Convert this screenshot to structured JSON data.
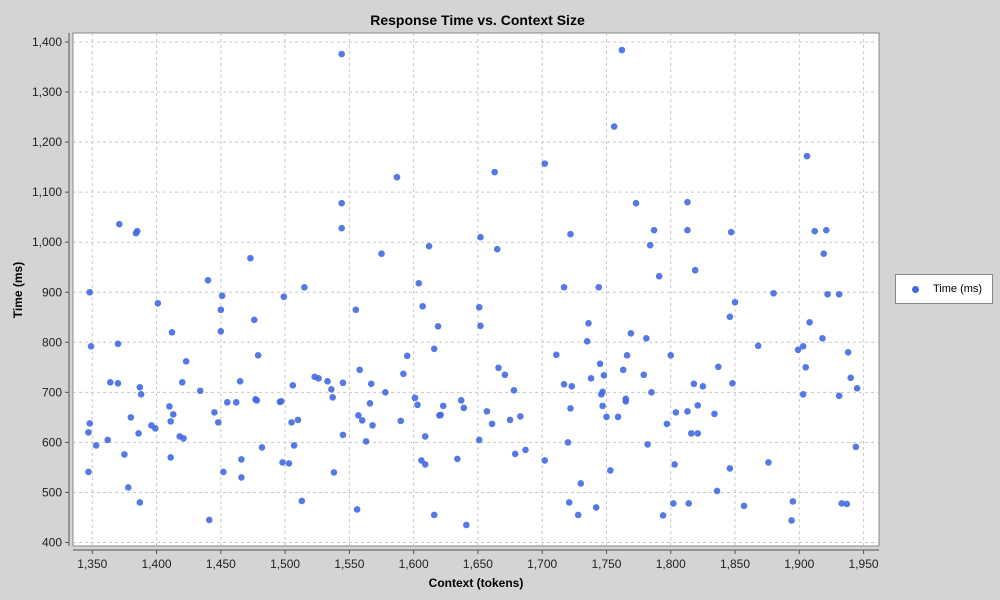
{
  "chart_data": {
    "type": "scatter",
    "title": "Response Time vs. Context Size",
    "xlabel": "Context (tokens)",
    "ylabel": "Time (ms)",
    "xlim": [
      1335,
      1962
    ],
    "ylim": [
      393,
      1418
    ],
    "x_ticks": [
      1350,
      1400,
      1450,
      1500,
      1550,
      1600,
      1650,
      1700,
      1750,
      1800,
      1850,
      1900,
      1950
    ],
    "x_tick_labels": [
      "1,350",
      "1,400",
      "1,450",
      "1,500",
      "1,550",
      "1,600",
      "1,650",
      "1,700",
      "1,750",
      "1,800",
      "1,850",
      "1,900",
      "1,950"
    ],
    "y_ticks": [
      400,
      500,
      600,
      700,
      800,
      900,
      1000,
      1100,
      1200,
      1300,
      1400
    ],
    "y_tick_labels": [
      "400",
      "500",
      "600",
      "700",
      "800",
      "900",
      "1,000",
      "1,100",
      "1,200",
      "1,300",
      "1,400"
    ],
    "grid": true,
    "legend_position": "right",
    "series": [
      {
        "name": "Time (ms)",
        "color": "#4169e1",
        "points": [
          [
            1348,
            900
          ],
          [
            1349,
            792
          ],
          [
            1347,
            620
          ],
          [
            1348,
            638
          ],
          [
            1347,
            541
          ],
          [
            1353,
            594
          ],
          [
            1362,
            605
          ],
          [
            1364,
            720
          ],
          [
            1370,
            797
          ],
          [
            1370,
            718
          ],
          [
            1371,
            1036
          ],
          [
            1375,
            576
          ],
          [
            1378,
            510
          ],
          [
            1380,
            650
          ],
          [
            1384,
            1018
          ],
          [
            1385,
            1022
          ],
          [
            1386,
            618
          ],
          [
            1387,
            480
          ],
          [
            1387,
            710
          ],
          [
            1388,
            696
          ],
          [
            1396,
            634
          ],
          [
            1399,
            628
          ],
          [
            1401,
            878
          ],
          [
            1410,
            672
          ],
          [
            1411,
            642
          ],
          [
            1411,
            570
          ],
          [
            1412,
            820
          ],
          [
            1413,
            656
          ],
          [
            1418,
            612
          ],
          [
            1420,
            720
          ],
          [
            1421,
            608
          ],
          [
            1423,
            762
          ],
          [
            1434,
            703
          ],
          [
            1440,
            924
          ],
          [
            1441,
            445
          ],
          [
            1445,
            660
          ],
          [
            1448,
            640
          ],
          [
            1450,
            865
          ],
          [
            1450,
            822
          ],
          [
            1451,
            893
          ],
          [
            1452,
            541
          ],
          [
            1455,
            680
          ],
          [
            1462,
            680
          ],
          [
            1465,
            722
          ],
          [
            1466,
            530
          ],
          [
            1466,
            566
          ],
          [
            1473,
            968
          ],
          [
            1476,
            845
          ],
          [
            1477,
            686
          ],
          [
            1478,
            684
          ],
          [
            1479,
            774
          ],
          [
            1482,
            590
          ],
          [
            1496,
            681
          ],
          [
            1497,
            682
          ],
          [
            1498,
            560
          ],
          [
            1499,
            891
          ],
          [
            1503,
            558
          ],
          [
            1505,
            640
          ],
          [
            1506,
            714
          ],
          [
            1507,
            594
          ],
          [
            1510,
            645
          ],
          [
            1513,
            483
          ],
          [
            1515,
            910
          ],
          [
            1523,
            731
          ],
          [
            1526,
            728
          ],
          [
            1533,
            722
          ],
          [
            1536,
            706
          ],
          [
            1537,
            690
          ],
          [
            1538,
            540
          ],
          [
            1544,
            1376
          ],
          [
            1544,
            1028
          ],
          [
            1544,
            1078
          ],
          [
            1545,
            615
          ],
          [
            1545,
            719
          ],
          [
            1555,
            865
          ],
          [
            1556,
            466
          ],
          [
            1557,
            654
          ],
          [
            1558,
            745
          ],
          [
            1560,
            644
          ],
          [
            1563,
            602
          ],
          [
            1566,
            678
          ],
          [
            1567,
            717
          ],
          [
            1568,
            634
          ],
          [
            1575,
            977
          ],
          [
            1578,
            700
          ],
          [
            1587,
            1130
          ],
          [
            1590,
            643
          ],
          [
            1592,
            737
          ],
          [
            1595,
            773
          ],
          [
            1601,
            689
          ],
          [
            1603,
            675
          ],
          [
            1604,
            918
          ],
          [
            1606,
            564
          ],
          [
            1607,
            872
          ],
          [
            1609,
            612
          ],
          [
            1609,
            556
          ],
          [
            1612,
            992
          ],
          [
            1616,
            455
          ],
          [
            1616,
            787
          ],
          [
            1619,
            832
          ],
          [
            1620,
            654
          ],
          [
            1621,
            655
          ],
          [
            1623,
            673
          ],
          [
            1634,
            567
          ],
          [
            1637,
            684
          ],
          [
            1639,
            669
          ],
          [
            1641,
            435
          ],
          [
            1651,
            870
          ],
          [
            1651,
            605
          ],
          [
            1652,
            1010
          ],
          [
            1652,
            833
          ],
          [
            1657,
            662
          ],
          [
            1661,
            637
          ],
          [
            1663,
            1140
          ],
          [
            1665,
            986
          ],
          [
            1666,
            749
          ],
          [
            1671,
            735
          ],
          [
            1675,
            645
          ],
          [
            1678,
            704
          ],
          [
            1679,
            577
          ],
          [
            1683,
            652
          ],
          [
            1687,
            585
          ],
          [
            1702,
            1157
          ],
          [
            1702,
            564
          ],
          [
            1711,
            775
          ],
          [
            1717,
            910
          ],
          [
            1717,
            716
          ],
          [
            1720,
            600
          ],
          [
            1721,
            480
          ],
          [
            1722,
            668
          ],
          [
            1722,
            1016
          ],
          [
            1723,
            712
          ],
          [
            1728,
            455
          ],
          [
            1730,
            518
          ],
          [
            1735,
            802
          ],
          [
            1736,
            838
          ],
          [
            1738,
            728
          ],
          [
            1742,
            470
          ],
          [
            1744,
            910
          ],
          [
            1745,
            757
          ],
          [
            1746,
            696
          ],
          [
            1747,
            701
          ],
          [
            1747,
            673
          ],
          [
            1748,
            734
          ],
          [
            1750,
            651
          ],
          [
            1753,
            544
          ],
          [
            1756,
            1231
          ],
          [
            1759,
            651
          ],
          [
            1762,
            1384
          ],
          [
            1763,
            745
          ],
          [
            1765,
            682
          ],
          [
            1765,
            687
          ],
          [
            1766,
            774
          ],
          [
            1769,
            818
          ],
          [
            1773,
            1078
          ],
          [
            1779,
            735
          ],
          [
            1781,
            808
          ],
          [
            1782,
            596
          ],
          [
            1784,
            994
          ],
          [
            1785,
            700
          ],
          [
            1787,
            1024
          ],
          [
            1791,
            932
          ],
          [
            1794,
            454
          ],
          [
            1797,
            637
          ],
          [
            1800,
            774
          ],
          [
            1802,
            478
          ],
          [
            1803,
            556
          ],
          [
            1804,
            660
          ],
          [
            1813,
            1024
          ],
          [
            1813,
            1080
          ],
          [
            1813,
            662
          ],
          [
            1814,
            478
          ],
          [
            1816,
            618
          ],
          [
            1819,
            944
          ],
          [
            1818,
            717
          ],
          [
            1821,
            618
          ],
          [
            1821,
            674
          ],
          [
            1825,
            712
          ],
          [
            1834,
            657
          ],
          [
            1836,
            503
          ],
          [
            1837,
            751
          ],
          [
            1846,
            548
          ],
          [
            1846,
            851
          ],
          [
            1847,
            1020
          ],
          [
            1848,
            718
          ],
          [
            1850,
            880
          ],
          [
            1857,
            473
          ],
          [
            1868,
            793
          ],
          [
            1876,
            560
          ],
          [
            1880,
            898
          ],
          [
            1894,
            444
          ],
          [
            1895,
            482
          ],
          [
            1899,
            785
          ],
          [
            1903,
            696
          ],
          [
            1903,
            792
          ],
          [
            1905,
            750
          ],
          [
            1906,
            1172
          ],
          [
            1908,
            840
          ],
          [
            1912,
            1022
          ],
          [
            1918,
            808
          ],
          [
            1919,
            977
          ],
          [
            1921,
            1024
          ],
          [
            1922,
            896
          ],
          [
            1931,
            896
          ],
          [
            1931,
            693
          ],
          [
            1933,
            478
          ],
          [
            1937,
            477
          ],
          [
            1938,
            780
          ],
          [
            1940,
            729
          ],
          [
            1944,
            591
          ],
          [
            1945,
            708
          ]
        ]
      }
    ]
  }
}
